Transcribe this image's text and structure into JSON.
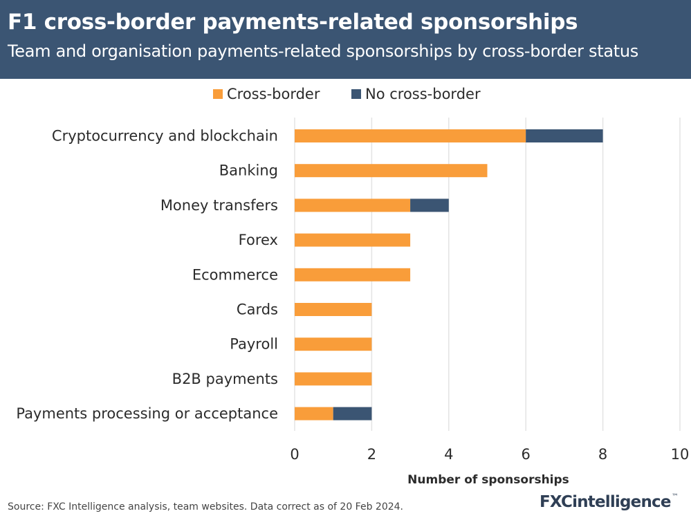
{
  "header": {
    "title": "F1 cross-border payments-related sponsorships",
    "subtitle": "Team and organisation payments-related sponsorships by cross-border status"
  },
  "footer": {
    "source": "Source: FXC Intelligence analysis, team websites. Data correct as of 20 Feb 2024.",
    "logo_text": "FXCintelligence",
    "logo_mark": "™"
  },
  "colors": {
    "header_bg": "#3b5573",
    "cross_border": "#f99d3a",
    "no_cross_border": "#3b5573"
  },
  "chart_data": {
    "type": "bar",
    "orientation": "horizontal",
    "stacked": true,
    "categories": [
      "Cryptocurrency and blockchain",
      "Banking",
      "Money transfers",
      "Forex",
      "Ecommerce",
      "Cards",
      "Payroll",
      "B2B payments",
      "Payments processing or acceptance"
    ],
    "series": [
      {
        "name": "Cross-border",
        "color": "#f99d3a",
        "values": [
          6,
          5,
          3,
          3,
          3,
          2,
          2,
          2,
          1
        ]
      },
      {
        "name": "No cross-border",
        "color": "#3b5573",
        "values": [
          2,
          0,
          1,
          0,
          0,
          0,
          0,
          0,
          1
        ]
      }
    ],
    "xlabel": "Number of sponsorships",
    "ylabel": "",
    "xlim": [
      0,
      10
    ],
    "xticks": [
      "0",
      "2",
      "4",
      "6",
      "8",
      "10"
    ],
    "grid": "vertical",
    "legend": "top"
  }
}
